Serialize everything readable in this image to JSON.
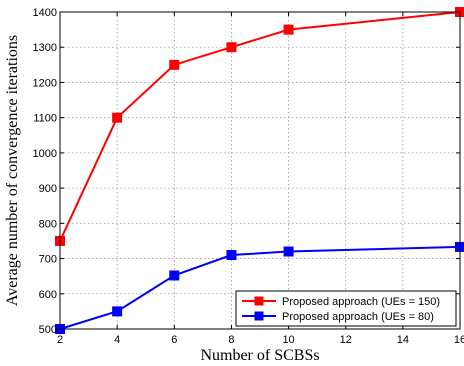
{
  "chart_data": {
    "type": "line",
    "xlabel": "Number of SCBSs",
    "ylabel": "Average number of convergence iterations",
    "xlim": [
      2,
      16
    ],
    "ylim": [
      500,
      1400
    ],
    "xticks": [
      2,
      4,
      6,
      8,
      10,
      12,
      14,
      16
    ],
    "yticks": [
      500,
      600,
      700,
      800,
      900,
      1000,
      1100,
      1200,
      1300,
      1400
    ],
    "grid": true,
    "legend_position": "bottom-right",
    "series": [
      {
        "name": "Proposed approach (UEs = 150)",
        "color": "#ff0000",
        "marker": "square",
        "x": [
          2,
          4,
          6,
          8,
          10,
          16
        ],
        "y": [
          750,
          1100,
          1250,
          1300,
          1350,
          1400
        ]
      },
      {
        "name": "Proposed approach (UEs = 80)",
        "color": "#0000ff",
        "marker": "square",
        "x": [
          2,
          4,
          6,
          8,
          10,
          16
        ],
        "y": [
          500,
          550,
          652,
          710,
          720,
          733
        ]
      }
    ]
  }
}
